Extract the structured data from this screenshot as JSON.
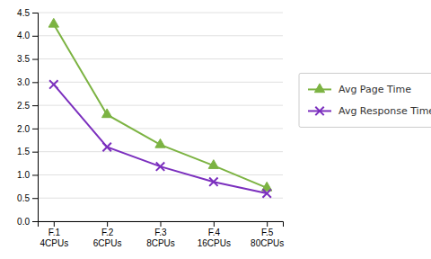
{
  "chart_data": {
    "type": "line",
    "categories": [
      "F.1\n4CPUs",
      "F.2\n6CPUs",
      "F.3\n8CPUs",
      "F.4\n16CPUs",
      "F.5\n80CPUs"
    ],
    "series": [
      {
        "name": "Avg Page Time",
        "color": "#7cb342",
        "marker": "triangle",
        "values": [
          4.25,
          2.3,
          1.65,
          1.2,
          0.72
        ]
      },
      {
        "name": "Avg Response Time",
        "color": "#7b2fbe",
        "marker": "x",
        "values": [
          2.95,
          1.6,
          1.18,
          0.85,
          0.6
        ]
      }
    ],
    "ylim": [
      0,
      4.5
    ],
    "yticks": [
      {
        "value": 0,
        "label": "0.0"
      },
      0.5,
      {
        "value": 1,
        "label": "1.0"
      },
      1.5,
      {
        "value": 2,
        "label": "2.0"
      },
      2.5,
      {
        "value": 3,
        "label": "3.0"
      },
      3.5,
      {
        "value": 4,
        "label": "4.0"
      },
      4.5
    ],
    "grid": true,
    "legend": "right"
  }
}
